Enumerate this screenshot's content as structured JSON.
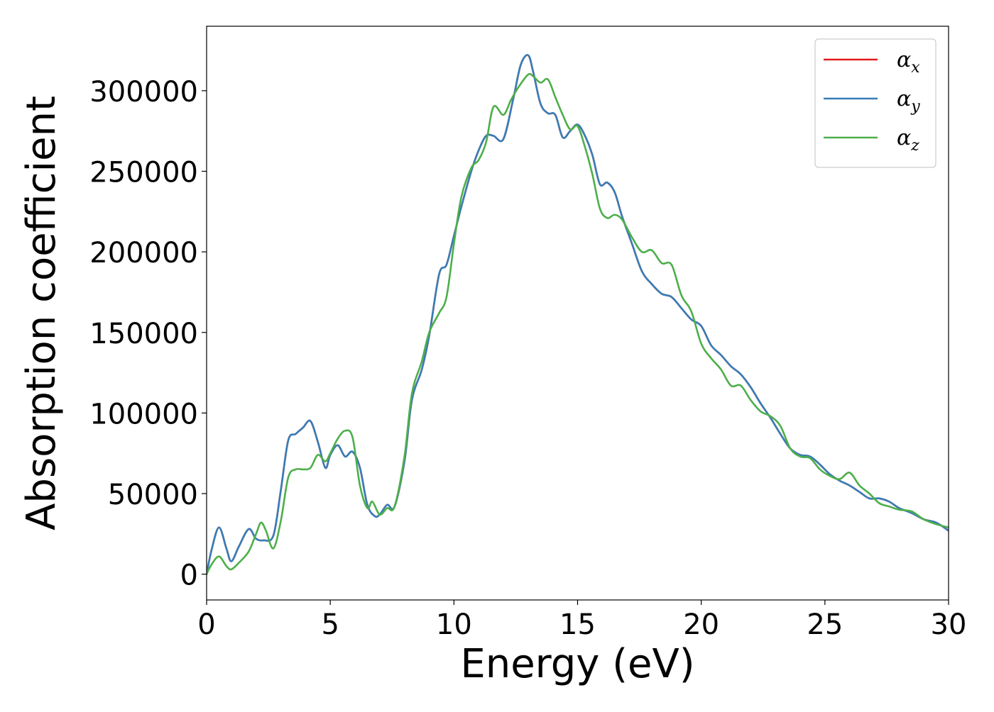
{
  "chart_data": {
    "type": "line",
    "xlabel": "Energy (eV)",
    "ylabel": "Absorption coefficient",
    "xlim": [
      0,
      30
    ],
    "ylim": [
      -16000,
      340000
    ],
    "xticks": [
      0,
      5,
      10,
      15,
      20,
      25,
      30
    ],
    "xtick_labels": [
      "0",
      "5",
      "10",
      "15",
      "20",
      "25",
      "30"
    ],
    "yticks": [
      0,
      50000,
      100000,
      150000,
      200000,
      250000,
      300000
    ],
    "ytick_labels": [
      "0",
      "50000",
      "100000",
      "150000",
      "200000",
      "250000",
      "300000"
    ],
    "grid": false,
    "legend_position": "top-right",
    "series": [
      {
        "name": "αx",
        "name_base": "α",
        "name_sub": "x",
        "color": "#e41a1c",
        "x": [
          0,
          0.2,
          0.5,
          0.8,
          1.0,
          1.3,
          1.7,
          2.0,
          2.3,
          2.7,
          3.0,
          3.3,
          3.6,
          3.9,
          4.2,
          4.5,
          4.8,
          5.0,
          5.3,
          5.6,
          5.9,
          6.2,
          6.5,
          6.8,
          7.0,
          7.3,
          7.6,
          8.0,
          8.3,
          8.7,
          9.0,
          9.4,
          9.7,
          10.0,
          10.3,
          10.7,
          11.0,
          11.3,
          11.6,
          12.0,
          12.4,
          12.7,
          13.0,
          13.2,
          13.5,
          13.8,
          14.1,
          14.4,
          14.7,
          15.0,
          15.3,
          15.6,
          15.9,
          16.2,
          16.5,
          16.8,
          17.2,
          17.6,
          18.0,
          18.4,
          18.8,
          19.2,
          19.6,
          20.0,
          20.4,
          20.8,
          21.2,
          21.6,
          22.0,
          22.4,
          22.8,
          23.2,
          23.6,
          24.0,
          24.4,
          24.8,
          25.2,
          25.6,
          26.0,
          26.4,
          26.8,
          27.2,
          27.6,
          28.0,
          28.5,
          29.0,
          29.5,
          30.0
        ],
        "values": [
          0,
          15000,
          29000,
          16000,
          8000,
          17000,
          28000,
          22000,
          21000,
          24000,
          52000,
          83000,
          87000,
          91000,
          95000,
          82000,
          66000,
          74000,
          80000,
          73000,
          76000,
          66000,
          43000,
          36000,
          37000,
          43000,
          42000,
          70000,
          108000,
          127000,
          148000,
          186000,
          192000,
          210000,
          228000,
          250000,
          263000,
          272000,
          272000,
          270000,
          295000,
          316000,
          322000,
          312000,
          292000,
          286000,
          285000,
          271000,
          275000,
          279000,
          272000,
          260000,
          242000,
          243000,
          237000,
          222000,
          205000,
          188000,
          180000,
          174000,
          172000,
          165000,
          158000,
          154000,
          142000,
          136000,
          129000,
          124000,
          116000,
          106000,
          97000,
          87000,
          78000,
          74000,
          73000,
          68000,
          62000,
          58000,
          55000,
          51000,
          47000,
          47000,
          45000,
          41000,
          38000,
          34000,
          32000,
          27000
        ]
      },
      {
        "name": "αy",
        "name_base": "α",
        "name_sub": "y",
        "color": "#377eb8",
        "x": [
          0,
          0.2,
          0.5,
          0.8,
          1.0,
          1.3,
          1.7,
          2.0,
          2.3,
          2.7,
          3.0,
          3.3,
          3.6,
          3.9,
          4.2,
          4.5,
          4.8,
          5.0,
          5.3,
          5.6,
          5.9,
          6.2,
          6.5,
          6.8,
          7.0,
          7.3,
          7.6,
          8.0,
          8.3,
          8.7,
          9.0,
          9.4,
          9.7,
          10.0,
          10.3,
          10.7,
          11.0,
          11.3,
          11.6,
          12.0,
          12.4,
          12.7,
          13.0,
          13.2,
          13.5,
          13.8,
          14.1,
          14.4,
          14.7,
          15.0,
          15.3,
          15.6,
          15.9,
          16.2,
          16.5,
          16.8,
          17.2,
          17.6,
          18.0,
          18.4,
          18.8,
          19.2,
          19.6,
          20.0,
          20.4,
          20.8,
          21.2,
          21.6,
          22.0,
          22.4,
          22.8,
          23.2,
          23.6,
          24.0,
          24.4,
          24.8,
          25.2,
          25.6,
          26.0,
          26.4,
          26.8,
          27.2,
          27.6,
          28.0,
          28.5,
          29.0,
          29.5,
          30.0
        ],
        "values": [
          0,
          15000,
          29000,
          16000,
          8000,
          17000,
          28000,
          22000,
          21000,
          24000,
          52000,
          83000,
          87000,
          91000,
          95000,
          82000,
          66000,
          74000,
          80000,
          73000,
          76000,
          66000,
          43000,
          36000,
          37000,
          43000,
          42000,
          70000,
          108000,
          127000,
          148000,
          186000,
          192000,
          210000,
          228000,
          250000,
          263000,
          272000,
          272000,
          270000,
          295000,
          316000,
          322000,
          312000,
          292000,
          286000,
          285000,
          271000,
          275000,
          279000,
          272000,
          260000,
          242000,
          243000,
          237000,
          222000,
          205000,
          188000,
          180000,
          174000,
          172000,
          165000,
          158000,
          154000,
          142000,
          136000,
          129000,
          124000,
          116000,
          106000,
          97000,
          87000,
          78000,
          74000,
          73000,
          68000,
          62000,
          58000,
          55000,
          51000,
          47000,
          47000,
          45000,
          41000,
          38000,
          34000,
          32000,
          27000
        ]
      },
      {
        "name": "αz",
        "name_base": "α",
        "name_sub": "z",
        "color": "#4daf4a",
        "x": [
          0,
          0.2,
          0.5,
          0.8,
          1.0,
          1.3,
          1.7,
          2.0,
          2.2,
          2.4,
          2.7,
          3.0,
          3.3,
          3.6,
          3.9,
          4.2,
          4.5,
          4.8,
          5.0,
          5.3,
          5.6,
          5.9,
          6.2,
          6.5,
          6.7,
          7.0,
          7.3,
          7.6,
          8.0,
          8.3,
          8.7,
          9.0,
          9.4,
          9.7,
          10.0,
          10.3,
          10.7,
          11.0,
          11.3,
          11.6,
          12.0,
          12.3,
          12.6,
          13.0,
          13.2,
          13.5,
          13.8,
          14.1,
          14.4,
          14.7,
          15.0,
          15.3,
          15.6,
          15.9,
          16.2,
          16.5,
          16.8,
          17.2,
          17.6,
          18.0,
          18.4,
          18.8,
          19.2,
          19.6,
          20.0,
          20.4,
          20.8,
          21.2,
          21.6,
          22.0,
          22.4,
          22.8,
          23.2,
          23.6,
          24.0,
          24.4,
          24.8,
          25.2,
          25.6,
          26.0,
          26.4,
          26.8,
          27.2,
          27.6,
          28.0,
          28.5,
          29.0,
          29.5,
          30.0
        ],
        "values": [
          0,
          6000,
          11000,
          5000,
          3000,
          7000,
          14000,
          25000,
          32000,
          27000,
          16000,
          33000,
          60000,
          65000,
          65000,
          66000,
          74000,
          70000,
          75000,
          84000,
          89000,
          85000,
          55000,
          41000,
          45000,
          37000,
          41000,
          42000,
          73000,
          112000,
          132000,
          150000,
          162000,
          172000,
          205000,
          234000,
          252000,
          257000,
          268000,
          290000,
          285000,
          294000,
          302000,
          310000,
          309000,
          305000,
          307000,
          296000,
          285000,
          276000,
          278000,
          265000,
          248000,
          227000,
          221000,
          223000,
          220000,
          209000,
          200000,
          201000,
          193000,
          192000,
          173000,
          163000,
          143000,
          134000,
          127000,
          117000,
          117000,
          108000,
          101000,
          98000,
          92000,
          78000,
          73000,
          72000,
          65000,
          61000,
          59000,
          63000,
          55000,
          50000,
          44000,
          42000,
          40000,
          39000,
          34000,
          31000,
          29000
        ]
      }
    ]
  }
}
